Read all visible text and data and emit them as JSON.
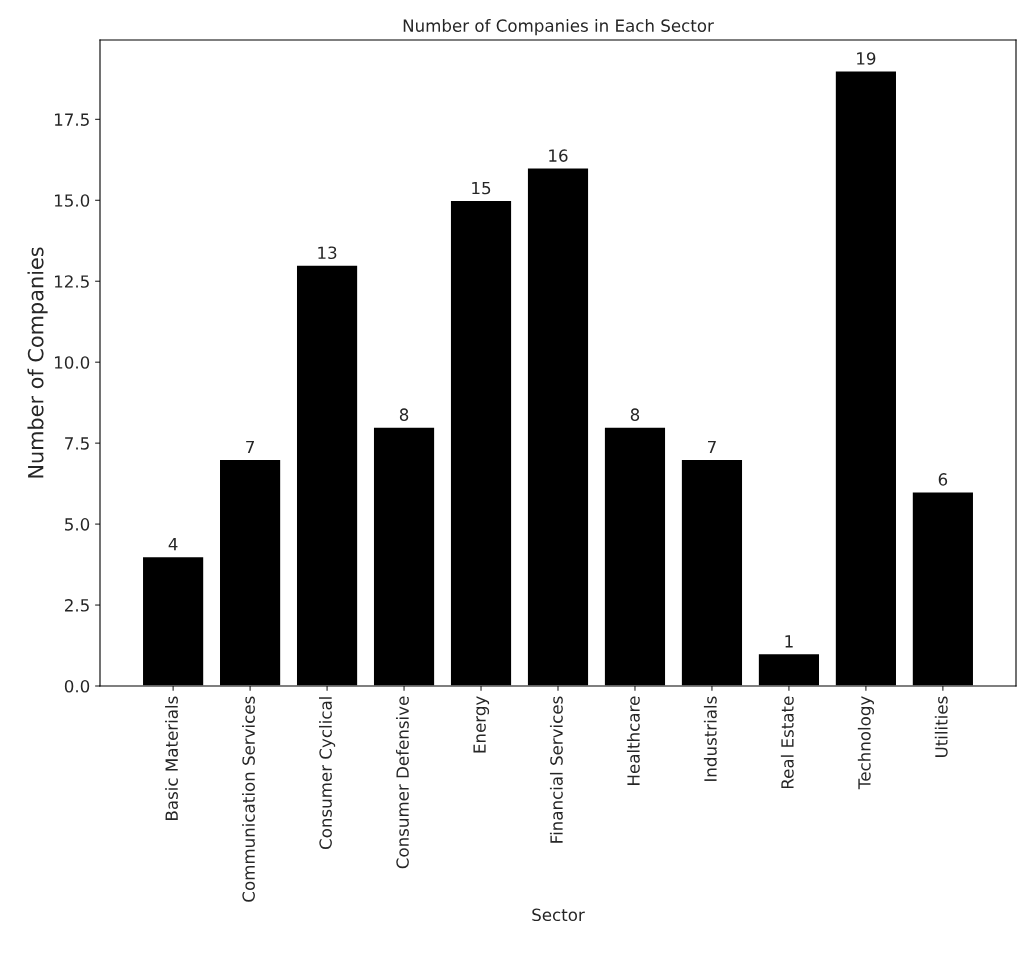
{
  "chart_data": {
    "type": "bar",
    "title": "Number of Companies in Each Sector",
    "xlabel": "Sector",
    "ylabel": "Number of Companies",
    "categories": [
      "Basic Materials",
      "Communication Services",
      "Consumer Cyclical",
      "Consumer Defensive",
      "Energy",
      "Financial Services",
      "Healthcare",
      "Industrials",
      "Real Estate",
      "Technology",
      "Utilities"
    ],
    "values": [
      4,
      7,
      13,
      8,
      15,
      16,
      8,
      7,
      1,
      19,
      6
    ],
    "color": "#000000",
    "ylim": [
      0,
      19.95
    ],
    "yticks": [
      {
        "value": 0,
        "label": "0.0"
      },
      {
        "value": 2.5,
        "label": "2.5"
      },
      {
        "value": 5,
        "label": "5.0"
      },
      {
        "value": 7.5,
        "label": "7.5"
      },
      {
        "value": 10,
        "label": "10.0"
      },
      {
        "value": 12.5,
        "label": "12.5"
      },
      {
        "value": 15,
        "label": "15.0"
      },
      {
        "value": 17.5,
        "label": "17.5"
      }
    ],
    "data_labels": true,
    "grid": false,
    "legend": false
  }
}
